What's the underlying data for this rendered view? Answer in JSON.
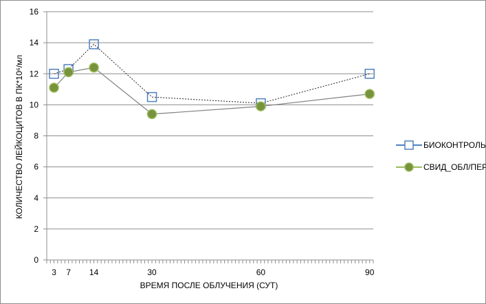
{
  "chart_data": {
    "type": "line",
    "title": "",
    "xlabel": "ВРЕМЯ ПОСЛЕ ОБЛУЧЕНИЯ (СУТ)",
    "ylabel": "КОЛИЧЕСТВО ЛЕЙКОЦИТОВ В ПК*10⁶/мл",
    "x": [
      3,
      7,
      14,
      30,
      60,
      90
    ],
    "x_tick_labels": [
      "3",
      "7",
      "14",
      "30",
      "60",
      "90"
    ],
    "xlim": [
      1,
      91
    ],
    "ylim": [
      0,
      16
    ],
    "y_ticks": [
      0,
      2,
      4,
      6,
      8,
      10,
      12,
      14,
      16
    ],
    "grid": "horizontal",
    "legend_position": "right",
    "series": [
      {
        "name": "БИОКОНТРОЛЬ",
        "values": [
          12.0,
          12.3,
          13.9,
          10.5,
          10.1,
          12.0
        ],
        "color": "#4f81bd",
        "marker": "hollow-square",
        "line_style": "dotted"
      },
      {
        "name": "СВИД_ОБЛ/ПЕР.",
        "values": [
          11.1,
          12.1,
          12.4,
          9.4,
          9.9,
          10.7
        ],
        "color": "#9bbb59",
        "marker": "filled-circle",
        "line_style": "solid"
      }
    ]
  }
}
